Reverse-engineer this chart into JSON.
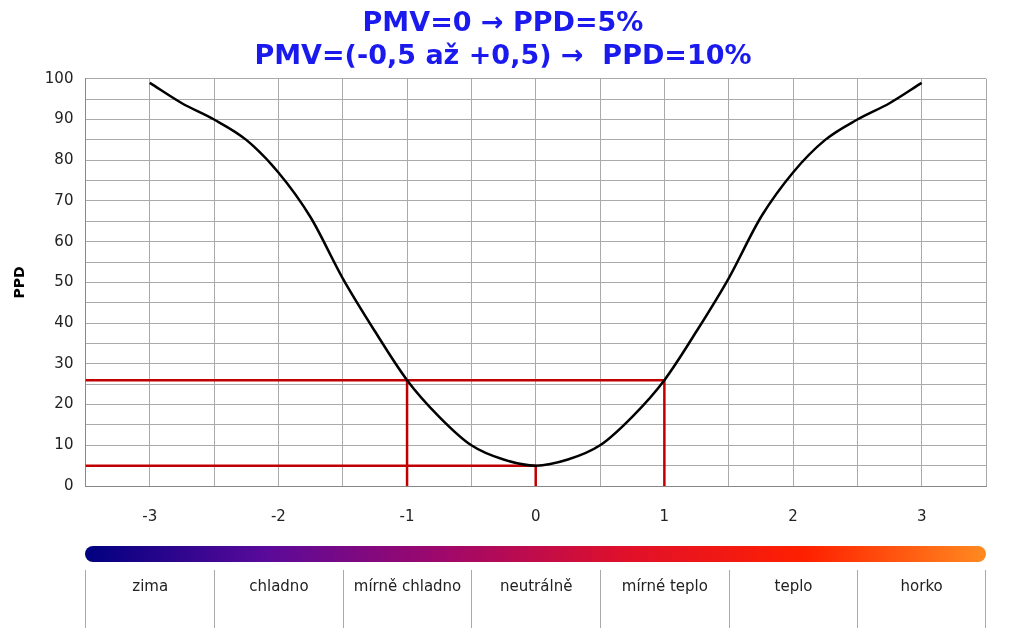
{
  "chart_data": {
    "type": "line",
    "title": [
      "PMV=0 → PPD=5%",
      "PMV=(-0,5 až +0,5) →  PPD=10%"
    ],
    "ylabel": "PPD",
    "xlim": [
      -3.5,
      3.5
    ],
    "xticks": [
      {
        "value": -3.5,
        "label": null
      },
      -3,
      {
        "value": -2.5,
        "label": null
      },
      -2,
      {
        "value": -1.5,
        "label": null
      },
      -1,
      {
        "value": -0.5,
        "label": null
      },
      0,
      {
        "value": 0.5,
        "label": null
      },
      1,
      {
        "value": 1.5,
        "label": null
      },
      2,
      {
        "value": 2.5,
        "label": null
      },
      3,
      {
        "value": 3.5,
        "label": null
      }
    ],
    "annotations": [
      "zima",
      "chladno",
      "mírně chladno",
      "neutrálně",
      "mírné teplo",
      "teplo",
      "horko"
    ],
    "ylim": [
      0,
      100
    ],
    "yticks": [
      0,
      {
        "value": 5,
        "label": null
      },
      10,
      {
        "value": 15,
        "label": null
      },
      20,
      {
        "value": 25,
        "label": null
      },
      30,
      {
        "value": 35,
        "label": null
      },
      40,
      {
        "value": 45,
        "label": null
      },
      50,
      {
        "value": 55,
        "label": null
      },
      60,
      {
        "value": 65,
        "label": null
      },
      70,
      {
        "value": 75,
        "label": null
      },
      80,
      {
        "value": 85,
        "label": null
      },
      90,
      {
        "value": 95,
        "label": null
      },
      100
    ],
    "grid": true,
    "legend": false,
    "series": [
      {
        "color": "#000000",
        "x": [
          -3,
          -2.75,
          -2.5,
          -2.25,
          -2,
          -1.75,
          -1.5,
          -1.25,
          -1,
          -0.75,
          -0.5,
          -0.25,
          0,
          0.25,
          0.5,
          0.75,
          1,
          1.25,
          1.5,
          1.75,
          2,
          2.25,
          2.5,
          2.75,
          3
        ],
        "values": [
          99,
          94,
          90,
          85,
          77,
          66,
          51,
          38,
          26,
          17,
          10,
          6.5,
          5,
          6.5,
          10,
          17,
          26,
          38,
          51,
          66,
          77,
          85,
          90,
          94,
          99
        ]
      },
      {
        "color": "#c00000",
        "x": [
          -3.5,
          -1,
          -1
        ],
        "values": [
          26,
          26,
          0
        ]
      },
      {
        "color": "#c00000",
        "x": [
          -1,
          1,
          1
        ],
        "values": [
          26,
          26,
          0
        ]
      },
      {
        "color": "#c00000",
        "x": [
          -3.5,
          0,
          0
        ],
        "values": [
          5,
          5,
          0
        ]
      }
    ]
  }
}
